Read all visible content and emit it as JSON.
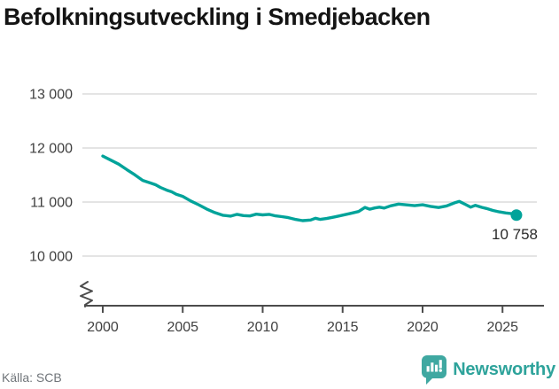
{
  "title": "Befolkningsutveckling i Smedjebacken",
  "source": "Källa: SCB",
  "brand": {
    "name": "Newsworthy",
    "icon": "newsworthy-bars-badge-icon",
    "badge_color": "#3fa8a1",
    "text_color": "#2ea39b"
  },
  "colors": {
    "line": "#00a39a",
    "grid": "#e4e4e4",
    "axis": "#4c4c4c",
    "tick_label": "#3f3f3f",
    "end_label": "#2a2a2a"
  },
  "chart_data": {
    "type": "line",
    "title": "Befolkningsutveckling i Smedjebacken",
    "xlabel": "",
    "ylabel": "",
    "x_ticks": [
      2000,
      2005,
      2010,
      2015,
      2020,
      2025
    ],
    "x_tick_labels": [
      "2000",
      "2005",
      "2010",
      "2015",
      "2020",
      "2025"
    ],
    "y_ticks": [
      10000,
      11000,
      12000,
      13000
    ],
    "y_tick_labels": [
      "10 000",
      "11 000",
      "12 000",
      "13 000"
    ],
    "ylim": [
      10000,
      13000
    ],
    "xlim": [
      2000,
      2026.6
    ],
    "grid": "horizontal",
    "axis_break": true,
    "legend": "none",
    "end_label": "10 758",
    "end_value": 10758,
    "series": [
      {
        "name": "Befolkning",
        "color": "#00a39a",
        "points": [
          [
            2000.0,
            11850
          ],
          [
            2000.5,
            11775
          ],
          [
            2001.0,
            11700
          ],
          [
            2001.5,
            11600
          ],
          [
            2002.0,
            11505
          ],
          [
            2002.5,
            11400
          ],
          [
            2003.0,
            11350
          ],
          [
            2003.3,
            11320
          ],
          [
            2003.6,
            11270
          ],
          [
            2004.0,
            11220
          ],
          [
            2004.3,
            11190
          ],
          [
            2004.6,
            11145
          ],
          [
            2005.0,
            11105
          ],
          [
            2005.5,
            11020
          ],
          [
            2006.0,
            10950
          ],
          [
            2006.5,
            10870
          ],
          [
            2007.0,
            10805
          ],
          [
            2007.5,
            10755
          ],
          [
            2008.0,
            10740
          ],
          [
            2008.4,
            10772
          ],
          [
            2008.8,
            10750
          ],
          [
            2009.2,
            10742
          ],
          [
            2009.6,
            10775
          ],
          [
            2010.0,
            10762
          ],
          [
            2010.4,
            10772
          ],
          [
            2010.8,
            10745
          ],
          [
            2011.2,
            10730
          ],
          [
            2011.6,
            10712
          ],
          [
            2012.0,
            10682
          ],
          [
            2012.5,
            10655
          ],
          [
            2013.0,
            10668
          ],
          [
            2013.3,
            10700
          ],
          [
            2013.6,
            10678
          ],
          [
            2014.0,
            10695
          ],
          [
            2014.5,
            10725
          ],
          [
            2015.0,
            10758
          ],
          [
            2015.5,
            10790
          ],
          [
            2016.0,
            10825
          ],
          [
            2016.4,
            10900
          ],
          [
            2016.7,
            10868
          ],
          [
            2017.0,
            10890
          ],
          [
            2017.3,
            10905
          ],
          [
            2017.6,
            10888
          ],
          [
            2018.0,
            10930
          ],
          [
            2018.5,
            10962
          ],
          [
            2019.0,
            10948
          ],
          [
            2019.5,
            10932
          ],
          [
            2020.0,
            10950
          ],
          [
            2020.5,
            10920
          ],
          [
            2021.0,
            10898
          ],
          [
            2021.5,
            10928
          ],
          [
            2022.0,
            10985
          ],
          [
            2022.3,
            11012
          ],
          [
            2022.7,
            10952
          ],
          [
            2023.0,
            10905
          ],
          [
            2023.3,
            10940
          ],
          [
            2023.7,
            10902
          ],
          [
            2024.0,
            10880
          ],
          [
            2024.4,
            10845
          ],
          [
            2024.8,
            10818
          ],
          [
            2025.2,
            10798
          ],
          [
            2025.5,
            10788
          ],
          [
            2025.87,
            10758
          ]
        ]
      }
    ]
  }
}
